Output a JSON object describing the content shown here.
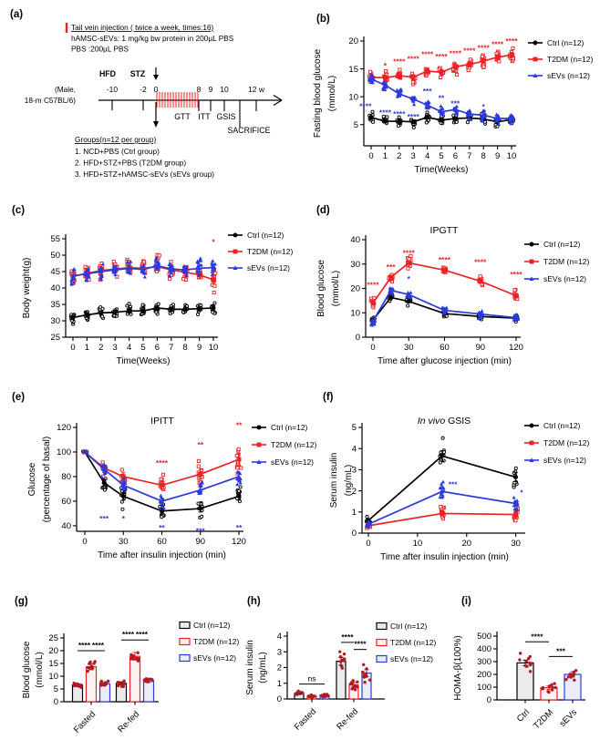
{
  "colors": {
    "ctrl": "#000000",
    "t2dm": "#ee2125",
    "sevs": "#2b3add",
    "dots": "#b01b20"
  },
  "bar_fills": {
    "ctrl": "#ebebeb",
    "t2dm": "#fdf2f2",
    "sevs": "#eaecf7"
  },
  "legend_labels": [
    "Ctrl (n=12)",
    "T2DM (n=12)",
    "sEVs (n=12)"
  ],
  "panel_a": {
    "label": "(a)",
    "injection_lines": [
      "Tail vein injection  ( twice a week, times:16)",
      "hAMSC-sEVs: 1 mg/kg bw protein in 200µL PBS",
      "PBS :200µL PBS"
    ],
    "hfd": "HFD",
    "stz": "STZ",
    "tick_labels": [
      "-10",
      "-2",
      "0",
      "8",
      "9",
      "10",
      "12 w"
    ],
    "mouse": [
      "(Male,",
      "18-m C57BL/6)"
    ],
    "tests": [
      "GTT",
      "ITT",
      "GSIS"
    ],
    "sacrifice": "SACRIFICE",
    "groups_title": "Groups(n=12 per group)",
    "groups": [
      "1.  NCD+PBS (Ctrl group)",
      "2.  HFD+STZ+PBS (T2DM group)",
      "3.  HFD+STZ+hAMSC-sEVs (sEVs group)"
    ]
  },
  "chart_data": [
    {
      "id": "b",
      "panel": "(b)",
      "type": "line",
      "title": "",
      "xlabel": "Time(Weeks)",
      "ylabel": [
        "Fasting blood glucose",
        "(mmol/L)"
      ],
      "x": [
        0,
        1,
        2,
        3,
        4,
        5,
        6,
        7,
        8,
        9,
        10
      ],
      "xticks": [
        0,
        1,
        2,
        3,
        4,
        5,
        6,
        7,
        8,
        9,
        10
      ],
      "xlim": [
        0,
        10
      ],
      "ylim": [
        1.2,
        20
      ],
      "yticks": [
        5,
        10,
        15,
        20
      ],
      "series": [
        {
          "key": "ctrl",
          "name": "Ctrl (n=12)",
          "marker": "circle",
          "values": [
            6.3,
            5.6,
            5.6,
            5.5,
            6.3,
            5.8,
            6.1,
            6.2,
            6.0,
            5.5,
            5.9
          ],
          "spread": 0.9
        },
        {
          "key": "t2dm",
          "name": "T2DM (n=12)",
          "marker": "square",
          "values": [
            13.5,
            13.4,
            13.8,
            13.5,
            14.6,
            14.4,
            15.4,
            15.8,
            16.4,
            17.1,
            17.5
          ],
          "spread": 1.3
        },
        {
          "key": "sevs",
          "name": "sEVs (n=12)",
          "marker": "triangle",
          "values": [
            13.2,
            12.1,
            10.5,
            9.6,
            8.5,
            7.3,
            7.7,
            6.9,
            6.7,
            6.1,
            6.1
          ],
          "spread": 1.1
        }
      ],
      "annotations": [
        {
          "x": 1,
          "y": 15.6,
          "text": "*",
          "color": "t2dm"
        },
        {
          "x": 2,
          "y": 16.3,
          "text": "****",
          "color": "t2dm"
        },
        {
          "x": 3,
          "y": 16.8,
          "text": "****",
          "color": "t2dm"
        },
        {
          "x": 4,
          "y": 17.6,
          "text": "****",
          "color": "t2dm"
        },
        {
          "x": 5,
          "y": 17.2,
          "text": "****",
          "color": "t2dm"
        },
        {
          "x": 6,
          "y": 17.8,
          "text": "****",
          "color": "t2dm"
        },
        {
          "x": 7,
          "y": 18.3,
          "text": "****",
          "color": "t2dm"
        },
        {
          "x": 8,
          "y": 18.8,
          "text": "****",
          "color": "t2dm"
        },
        {
          "x": 9,
          "y": 19.4,
          "text": "****",
          "color": "t2dm"
        },
        {
          "x": 10,
          "y": 20.0,
          "text": "****",
          "color": "t2dm"
        },
        {
          "x": -0.4,
          "y": 8.3,
          "text": "****",
          "color": "sevs"
        },
        {
          "x": 1,
          "y": 7.2,
          "text": "****",
          "color": "sevs"
        },
        {
          "x": 2,
          "y": 6.9,
          "text": "****",
          "color": "sevs"
        },
        {
          "x": 3,
          "y": 6.4,
          "text": "****",
          "color": "sevs"
        },
        {
          "x": 4,
          "y": 11.0,
          "text": "***",
          "color": "sevs"
        },
        {
          "x": 5,
          "y": 9.8,
          "text": "**",
          "color": "sevs"
        },
        {
          "x": 6,
          "y": 8.8,
          "text": "***",
          "color": "sevs"
        },
        {
          "x": 8,
          "y": 8.2,
          "text": "*",
          "color": "sevs"
        }
      ]
    },
    {
      "id": "c",
      "panel": "(c)",
      "type": "line",
      "title": "",
      "xlabel": "Time(Weeks)",
      "ylabel": [
        "Body weight(g)"
      ],
      "x": [
        0,
        1,
        2,
        3,
        4,
        5,
        6,
        7,
        8,
        9,
        10
      ],
      "xticks": [
        0,
        1,
        2,
        3,
        4,
        5,
        6,
        7,
        8,
        9,
        10
      ],
      "xlim": [
        0,
        10
      ],
      "ylim": [
        25,
        55
      ],
      "yticks": [
        25,
        30,
        35,
        40,
        45,
        50,
        55
      ],
      "series": [
        {
          "key": "ctrl",
          "name": "Ctrl (n=12)",
          "marker": "circle",
          "values": [
            31.0,
            31.8,
            32.4,
            32.6,
            33.0,
            33.0,
            33.9,
            33.5,
            33.5,
            33.7,
            33.9
          ],
          "spread": 1.9
        },
        {
          "key": "t2dm",
          "name": "T2DM (n=12)",
          "marker": "square",
          "values": [
            43.5,
            44.5,
            45.3,
            45.8,
            46.2,
            46.0,
            46.5,
            45.5,
            44.8,
            44.0,
            42.5
          ],
          "spread": 3.2
        },
        {
          "key": "sevs",
          "name": "sEVs (n=12)",
          "marker": "triangle",
          "values": [
            43.7,
            44.3,
            45.0,
            45.5,
            46.0,
            45.6,
            46.8,
            45.8,
            45.5,
            46.0,
            46.2
          ],
          "spread": 2.8
        }
      ],
      "annotations": [
        {
          "x": 10,
          "y": 54.0,
          "text": "*",
          "color": "t2dm"
        }
      ]
    },
    {
      "id": "d",
      "panel": "(d)",
      "type": "line",
      "title": "IPGTT",
      "xlabel": "Time after glucose injection (min)",
      "ylabel": [
        "Blood glucose",
        "(mmol/L)"
      ],
      "x": [
        0,
        15,
        30,
        60,
        90,
        120
      ],
      "xticks": [
        0,
        30,
        60,
        90,
        120
      ],
      "xlim": [
        0,
        120
      ],
      "ylim": [
        0,
        40
      ],
      "yticks": [
        0,
        10,
        20,
        30,
        40
      ],
      "series": [
        {
          "key": "ctrl",
          "name": "Ctrl (n=12)",
          "marker": "circle",
          "values": [
            7.0,
            16.3,
            14.7,
            9.7,
            8.5,
            7.8
          ],
          "spread": 1.6
        },
        {
          "key": "t2dm",
          "name": "T2DM (n=12)",
          "marker": "square",
          "values": [
            14.0,
            24.5,
            30.5,
            27.5,
            23.0,
            17.0
          ],
          "spread": 2.6
        },
        {
          "key": "sevs",
          "name": "sEVs (n=12)",
          "marker": "triangle",
          "values": [
            6.5,
            19.2,
            17.5,
            11.0,
            9.5,
            8.0
          ],
          "spread": 1.8
        }
      ],
      "annotations": [
        {
          "x": 0,
          "y": 21.5,
          "text": "****",
          "color": "t2dm"
        },
        {
          "x": 15,
          "y": 28.8,
          "text": "***",
          "color": "t2dm"
        },
        {
          "x": 30,
          "y": 34.5,
          "text": "****",
          "color": "t2dm"
        },
        {
          "x": 60,
          "y": 31.8,
          "text": "****",
          "color": "t2dm"
        },
        {
          "x": 90,
          "y": 30.8,
          "text": "****",
          "color": "t2dm"
        },
        {
          "x": 120,
          "y": 25.8,
          "text": "****",
          "color": "t2dm"
        },
        {
          "x": 30,
          "y": 24.0,
          "text": "*",
          "color": "sevs"
        }
      ]
    },
    {
      "id": "e",
      "panel": "(e)",
      "type": "line",
      "title": "IPITT",
      "xlabel": "Time after insulin injection (min)",
      "ylabel": [
        "Glucose",
        "(percentage of basal)"
      ],
      "x": [
        0,
        15,
        30,
        60,
        90,
        120
      ],
      "xticks": [
        0,
        30,
        60,
        90,
        120
      ],
      "xlim": [
        0,
        120
      ],
      "ylim": [
        35.5,
        120
      ],
      "yticks": [
        40,
        60,
        80,
        100,
        120
      ],
      "series": [
        {
          "key": "ctrl",
          "name": "Ctrl (n=12)",
          "marker": "circle",
          "values": [
            100,
            75,
            64,
            52,
            54,
            64
          ],
          "spread": [
            0.5,
            8,
            9,
            7,
            8,
            9
          ]
        },
        {
          "key": "t2dm",
          "name": "T2DM (n=12)",
          "marker": "square",
          "values": [
            100,
            87,
            80,
            73,
            82,
            94
          ],
          "spread": [
            0.5,
            7,
            9,
            9,
            11,
            13
          ]
        },
        {
          "key": "sevs",
          "name": "sEVs (n=12)",
          "marker": "triangle",
          "values": [
            100,
            86,
            73,
            60,
            69,
            80
          ],
          "spread": [
            0.5,
            7,
            9,
            7,
            9,
            8
          ]
        }
      ],
      "annotations": [
        {
          "x": 60,
          "y": 91,
          "text": "****",
          "color": "t2dm"
        },
        {
          "x": 90,
          "y": 106,
          "text": "**",
          "color": "t2dm"
        },
        {
          "x": 120,
          "y": 122,
          "text": "**",
          "color": "t2dm"
        },
        {
          "x": 15,
          "y": 46,
          "text": "***",
          "color": "sevs"
        },
        {
          "x": 30,
          "y": 46,
          "text": "*",
          "color": "sevs"
        },
        {
          "x": 60,
          "y": 38.5,
          "text": "**",
          "color": "sevs"
        },
        {
          "x": 90,
          "y": 36,
          "text": "***",
          "color": "sevs"
        },
        {
          "x": 120,
          "y": 38.5,
          "text": "**",
          "color": "sevs"
        }
      ]
    },
    {
      "id": "f",
      "panel": "(f)",
      "type": "line",
      "title": "",
      "title_parts": [
        {
          "text": "In vivo ",
          "italic": true
        },
        {
          "text": "GSIS",
          "italic": false
        }
      ],
      "xlabel": "Time after insulin injection (min)",
      "ylabel": [
        "Serum insulin",
        "(ng/mL)"
      ],
      "x": [
        0,
        15,
        30
      ],
      "xticks": [
        0,
        10,
        20,
        30
      ],
      "xlim": [
        0,
        31
      ],
      "ylim": [
        0,
        5
      ],
      "yticks": [
        0,
        1,
        2,
        3,
        4,
        5
      ],
      "series": [
        {
          "key": "ctrl",
          "name": "Ctrl (n=12)",
          "marker": "circle",
          "values": [
            0.6,
            3.65,
            2.65
          ],
          "spread": [
            0.25,
            0.7,
            0.6
          ]
        },
        {
          "key": "t2dm",
          "name": "T2DM (n=12)",
          "marker": "square",
          "values": [
            0.35,
            0.93,
            0.88
          ],
          "spread": [
            0.12,
            0.35,
            0.35
          ]
        },
        {
          "key": "sevs",
          "name": "sEVs (n=12)",
          "marker": "triangle",
          "values": [
            0.42,
            1.97,
            1.4
          ],
          "spread": [
            0.15,
            0.5,
            0.4
          ]
        }
      ],
      "annotations": [
        {
          "x": 17.2,
          "y": 2.3,
          "text": "***",
          "color": "sevs"
        },
        {
          "x": 31.2,
          "y": 1.92,
          "text": "*",
          "color": "sevs"
        }
      ]
    },
    {
      "id": "g",
      "panel": "(g)",
      "type": "bar",
      "ylabel": [
        "Blood glucose",
        "(mmol/L)"
      ],
      "ylim": [
        0,
        25
      ],
      "yticks": [
        0,
        5,
        10,
        15,
        20,
        25
      ],
      "series_keys": [
        "ctrl",
        "t2dm",
        "sevs"
      ],
      "groups": [
        {
          "label": "Fasted",
          "values": [
            6.5,
            13.7,
            7.0
          ],
          "err": [
            0.5,
            1.2,
            0.5
          ],
          "spread": [
            1.0,
            1.8,
            0.9
          ]
        },
        {
          "label": "Re-fed",
          "values": [
            7.2,
            17.8,
            8.3
          ],
          "err": [
            0.6,
            1.5,
            0.7
          ],
          "spread": [
            1.1,
            2.2,
            0.9
          ]
        }
      ],
      "sig": [
        {
          "x1": [
            0,
            0
          ],
          "x2": [
            0,
            1
          ],
          "y": 20.0,
          "label": "****"
        },
        {
          "x1": [
            0,
            1
          ],
          "x2": [
            0,
            2
          ],
          "y": 20.0,
          "label": "****"
        },
        {
          "x1": [
            1,
            0
          ],
          "x2": [
            1,
            1
          ],
          "y": 24.2,
          "label": "****"
        },
        {
          "x1": [
            1,
            1
          ],
          "x2": [
            1,
            2
          ],
          "y": 24.2,
          "label": "****"
        }
      ],
      "legend": true
    },
    {
      "id": "h",
      "panel": "(h)",
      "type": "bar",
      "ylabel": [
        "Serum insulin",
        "(ng/mL)"
      ],
      "ylim": [
        0,
        4
      ],
      "yticks": [
        0,
        1,
        2,
        3,
        4
      ],
      "series_keys": [
        "ctrl",
        "t2dm",
        "sevs"
      ],
      "groups": [
        {
          "label": "Fasted",
          "values": [
            0.35,
            0.18,
            0.25
          ],
          "err": [
            0.06,
            0.04,
            0.05
          ],
          "spread": [
            0.12,
            0.08,
            0.1
          ]
        },
        {
          "label": "Re-fed",
          "values": [
            2.4,
            0.9,
            1.65
          ],
          "err": [
            0.25,
            0.15,
            0.22
          ],
          "spread": [
            0.55,
            0.3,
            0.55
          ]
        }
      ],
      "sig": [
        {
          "x1": [
            0,
            0
          ],
          "x2": [
            0,
            2
          ],
          "y": 0.95,
          "label": "ns"
        },
        {
          "x1": [
            1,
            0
          ],
          "x2": [
            1,
            1
          ],
          "y": 3.6,
          "label": "****"
        },
        {
          "x1": [
            1,
            1
          ],
          "x2": [
            1,
            2
          ],
          "y": 3.15,
          "label": "****"
        }
      ],
      "legend": true
    },
    {
      "id": "i",
      "panel": "(i)",
      "type": "bar",
      "ylabel": [
        "HOMA-β(100%)"
      ],
      "ylim": [
        0,
        500
      ],
      "yticks": [
        0,
        100,
        200,
        300,
        400,
        500
      ],
      "series_keys": [
        "ctrl",
        "t2dm",
        "sevs"
      ],
      "groups": [
        {
          "label": "Ctrl",
          "keys": [
            "ctrl"
          ],
          "values": [
            290
          ],
          "err": [
            22
          ],
          "spread": [
            60
          ]
        },
        {
          "label": "T2DM",
          "keys": [
            "t2dm"
          ],
          "values": [
            95
          ],
          "err": [
            14
          ],
          "spread": [
            35
          ]
        },
        {
          "label": "sEVs",
          "keys": [
            "sevs"
          ],
          "values": [
            200
          ],
          "err": [
            20
          ],
          "spread": [
            45
          ]
        }
      ],
      "sig": [
        {
          "x1": [
            0,
            0
          ],
          "x2": [
            1,
            0
          ],
          "y": 455,
          "label": "****"
        },
        {
          "x1": [
            1,
            0
          ],
          "x2": [
            2,
            0
          ],
          "y": 340,
          "label": "***"
        }
      ],
      "legend": false
    }
  ]
}
